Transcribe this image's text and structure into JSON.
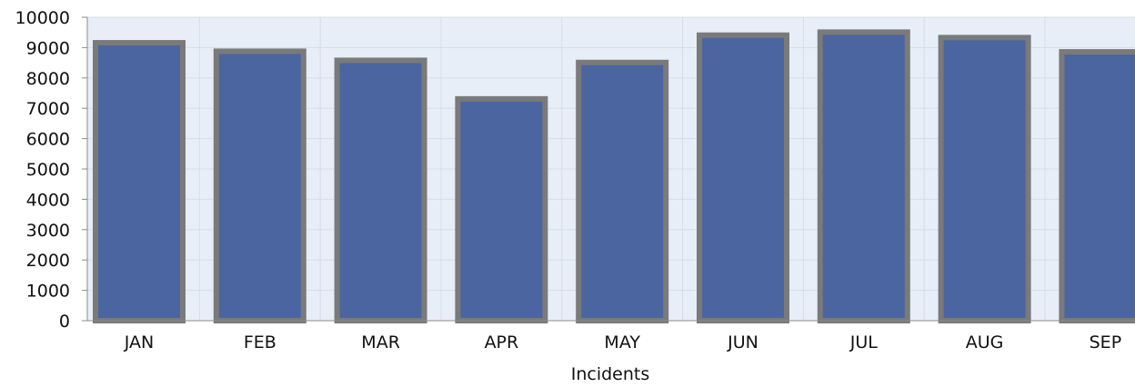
{
  "chart_data": {
    "type": "bar",
    "title": "",
    "xlabel": "Incidents",
    "ylabel": "",
    "categories": [
      "JAN",
      "FEB",
      "MAR",
      "APR",
      "MAY",
      "JUN",
      "JUL",
      "AUG",
      "SEP"
    ],
    "series": [
      {
        "values": [
          9250,
          8970,
          8670,
          7400,
          8600,
          9500,
          9600,
          9420,
          8950
        ]
      }
    ],
    "ylim": [
      0,
      10000
    ],
    "yticks": [
      "0",
      "1000",
      "2000",
      "3000",
      "4000",
      "5000",
      "6000",
      "7000",
      "8000",
      "9000",
      "10000"
    ],
    "grid": true,
    "legend": "none",
    "colors": {
      "bar_fill": "#4a65a0",
      "bar_border": "#7a7a7a",
      "plot_background": "#e8eef8",
      "gridline": "#d6dde8"
    }
  }
}
